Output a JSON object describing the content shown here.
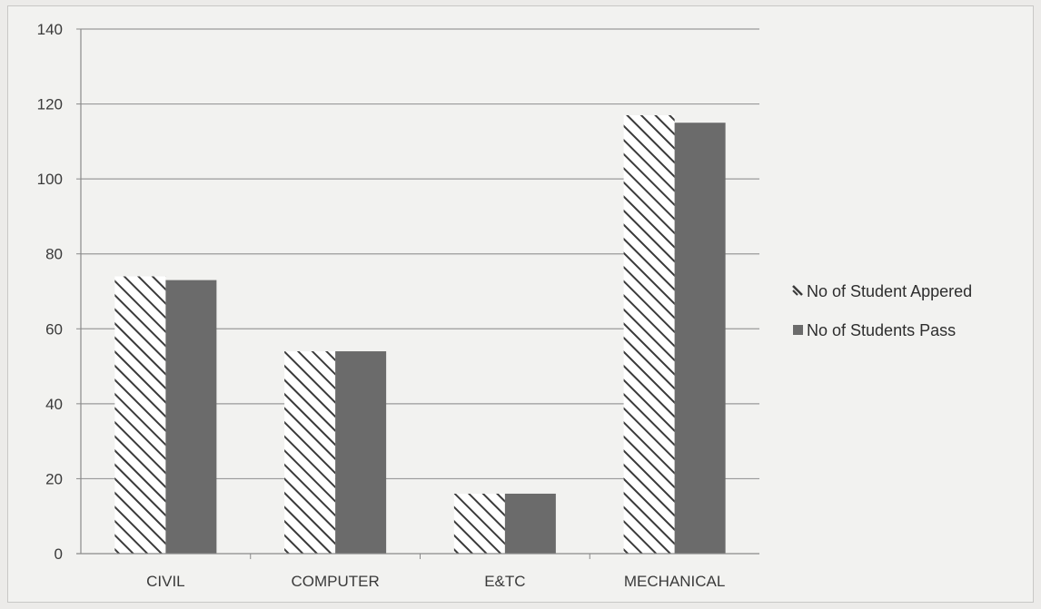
{
  "chart_data": {
    "type": "bar",
    "categories": [
      "CIVIL",
      "COMPUTER",
      "E&TC",
      "MECHANICAL"
    ],
    "series": [
      {
        "name": "No of Student Appered",
        "values": [
          74,
          54,
          16,
          117
        ],
        "fill": "hatch"
      },
      {
        "name": "No of Students Pass",
        "values": [
          73,
          54,
          16,
          115
        ],
        "fill": "#6b6b6b"
      }
    ],
    "yticks": [
      0,
      20,
      40,
      60,
      80,
      100,
      120,
      140
    ],
    "ylim": [
      0,
      140
    ],
    "title": "",
    "xlabel": "",
    "ylabel": "",
    "grid": true,
    "legend": "right"
  },
  "colors": {
    "background": "#f2f2f0",
    "gridline": "#9a9a9a",
    "axis": "#8a8a8a",
    "hatch_stroke": "#3a3a3a",
    "solid_bar": "#6b6b6b"
  }
}
